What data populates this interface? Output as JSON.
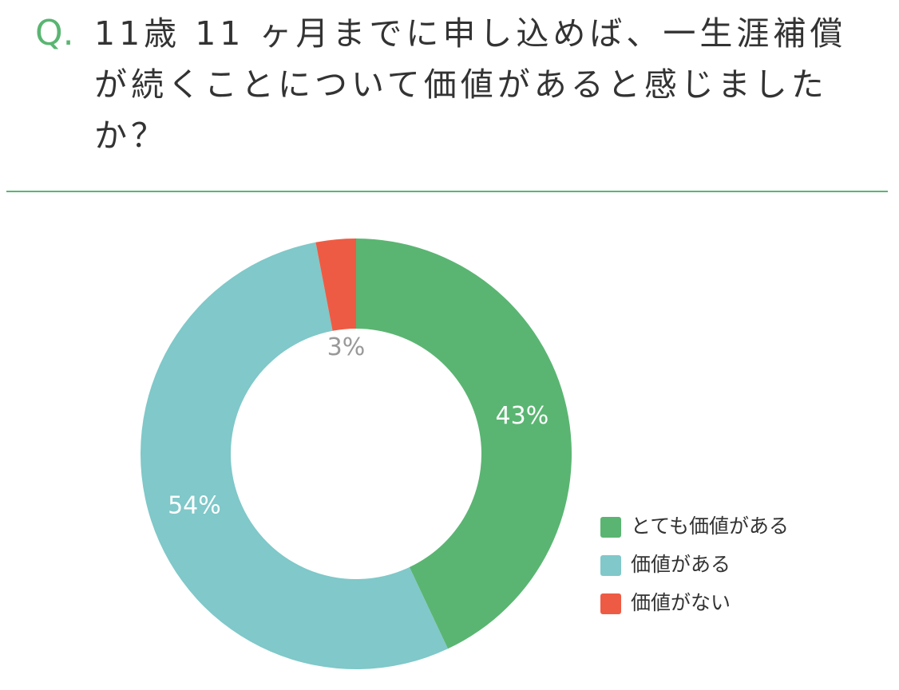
{
  "chart_data": {
    "type": "donut",
    "question_label": "Q.",
    "title": "11歳 11 ヶ月までに申し込めば、一生涯補償が続くことについて価値があると感じましたか？",
    "categories": [
      "とても価値がある",
      "価値がある",
      "価値がない"
    ],
    "values": [
      43,
      54,
      3
    ],
    "value_labels": [
      "43%",
      "54%",
      "3%"
    ],
    "colors": [
      "#5ab572",
      "#80c8c9",
      "#ee5b44"
    ],
    "legend": "right"
  }
}
